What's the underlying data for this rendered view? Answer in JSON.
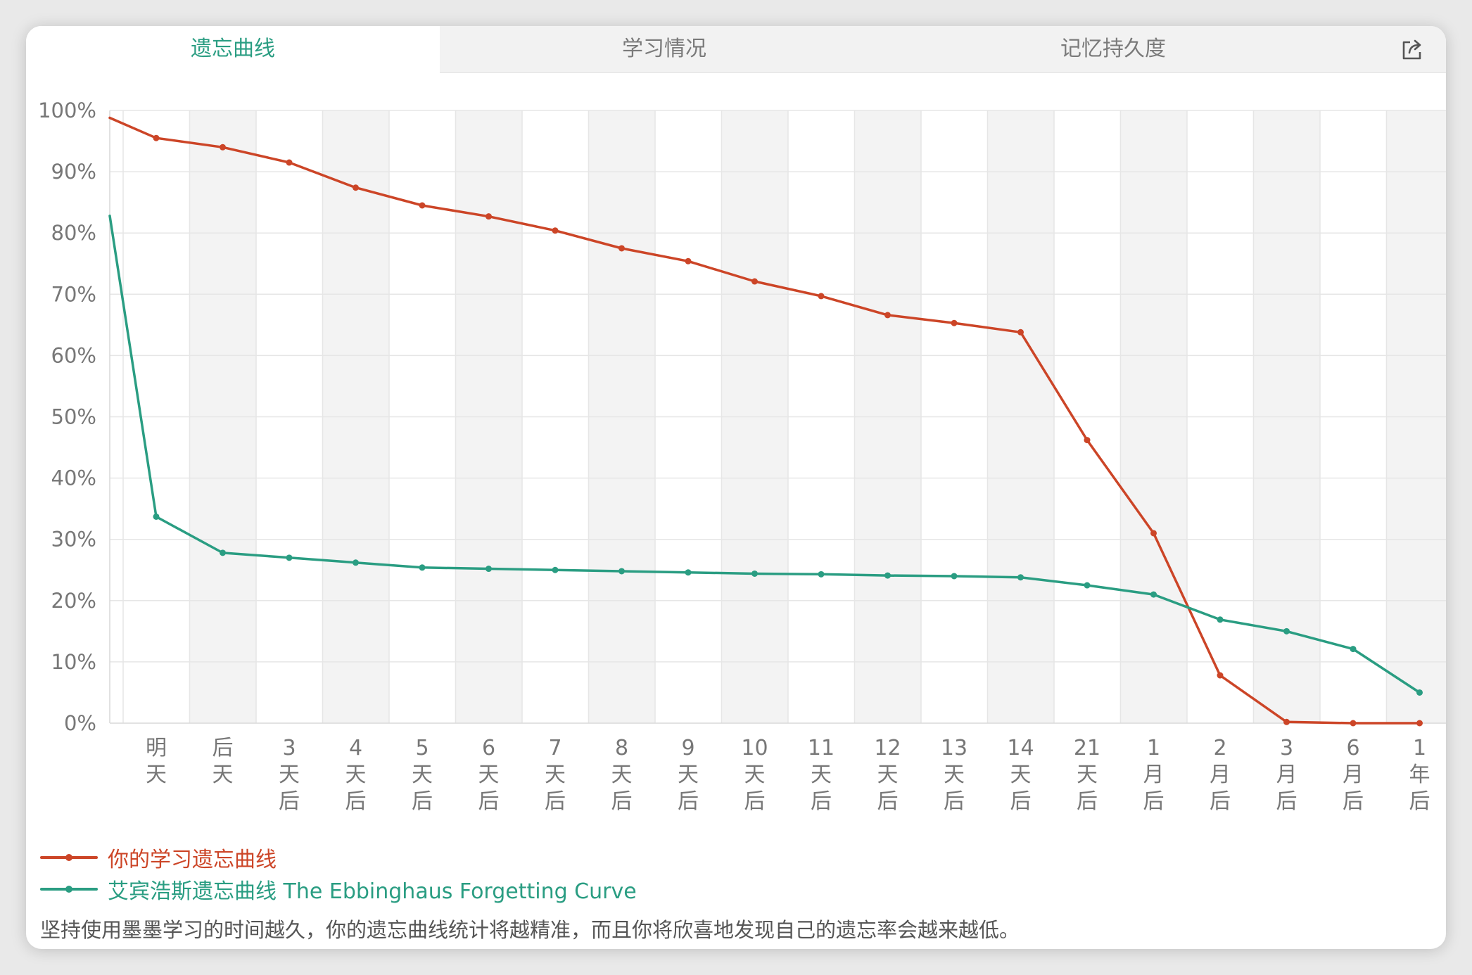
{
  "tabs": [
    {
      "label": "遗忘曲线",
      "active": true
    },
    {
      "label": "学习情况",
      "active": false
    },
    {
      "label": "记忆持久度",
      "active": false
    }
  ],
  "share_icon": "share-export-icon",
  "colors": {
    "accent": "#2a9d82",
    "user_series": "#cc4527",
    "ebbinghaus_series": "#2a9d82",
    "band": "#f3f3f3",
    "grid": "#e6e6e6",
    "axis_text": "#777777"
  },
  "chart_data": {
    "type": "line",
    "categories": [
      [
        "明",
        "天"
      ],
      [
        "后",
        "天"
      ],
      [
        "3",
        "天",
        "后"
      ],
      [
        "4",
        "天",
        "后"
      ],
      [
        "5",
        "天",
        "后"
      ],
      [
        "6",
        "天",
        "后"
      ],
      [
        "7",
        "天",
        "后"
      ],
      [
        "8",
        "天",
        "后"
      ],
      [
        "9",
        "天",
        "后"
      ],
      [
        "10",
        "天",
        "后"
      ],
      [
        "11",
        "天",
        "后"
      ],
      [
        "12",
        "天",
        "后"
      ],
      [
        "13",
        "天",
        "后"
      ],
      [
        "14",
        "天",
        "后"
      ],
      [
        "21",
        "天",
        "后"
      ],
      [
        "1",
        "月",
        "后"
      ],
      [
        "2",
        "月",
        "后"
      ],
      [
        "3",
        "月",
        "后"
      ],
      [
        "6",
        "月",
        "后"
      ],
      [
        "1",
        "年",
        "后"
      ]
    ],
    "y_ticks": [
      "100%",
      "90%",
      "80%",
      "70%",
      "60%",
      "50%",
      "40%",
      "30%",
      "20%",
      "10%",
      "0%"
    ],
    "ylim": [
      0,
      100
    ],
    "grid": true,
    "legend_position": "bottom-left",
    "series": [
      {
        "name": "你的学习遗忘曲线",
        "start_value": 98.8,
        "values": [
          95.5,
          94.0,
          91.5,
          87.4,
          84.5,
          82.7,
          80.4,
          77.5,
          75.4,
          72.1,
          69.7,
          66.6,
          65.3,
          63.8,
          46.2,
          31.0,
          7.8,
          0.2,
          0.0,
          0.0
        ]
      },
      {
        "name": "艾宾浩斯遗忘曲线 The Ebbinghaus Forgetting Curve",
        "start_value": 82.8,
        "values": [
          33.7,
          27.8,
          27.0,
          26.2,
          25.4,
          25.2,
          25.0,
          24.8,
          24.6,
          24.4,
          24.3,
          24.1,
          24.0,
          23.8,
          22.5,
          21.0,
          16.9,
          15.0,
          12.1,
          5.0
        ]
      }
    ]
  },
  "footnote": "坚持使用墨墨学习的时间越久，你的遗忘曲线统计将越精准，而且你将欣喜地发现自己的遗忘率会越来越低。"
}
